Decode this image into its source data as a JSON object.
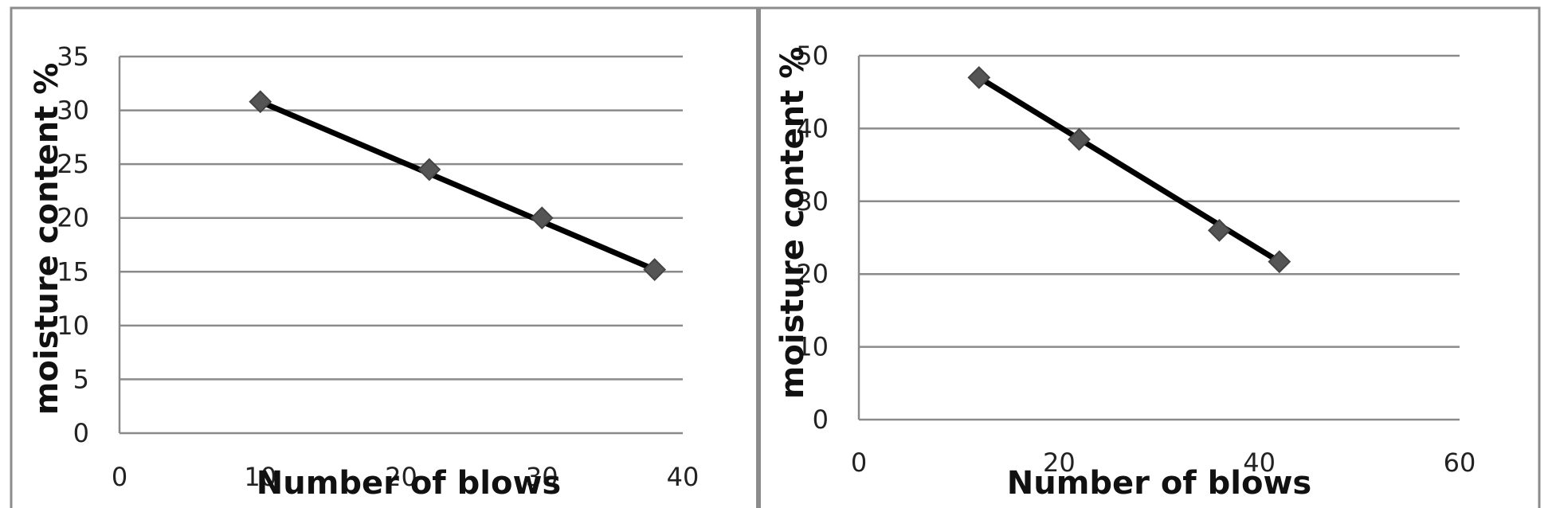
{
  "chart_data": [
    {
      "type": "scatter",
      "xlabel": "Number of blows",
      "ylabel": "moisture content %",
      "xlim": [
        0,
        40
      ],
      "ylim": [
        0,
        35
      ],
      "x_ticks": [
        "0",
        "10",
        "20",
        "30",
        "40"
      ],
      "y_ticks": [
        "0",
        "5",
        "10",
        "15",
        "20",
        "25",
        "30",
        "35"
      ],
      "grid": "horizontal",
      "legend": "none",
      "series": [
        {
          "x": [
            10,
            22,
            30,
            38
          ],
          "y": [
            30.8,
            24.5,
            20,
            15.2
          ],
          "color": "#000000",
          "marker": "diamond",
          "marker_color": "#555555",
          "trendline": {
            "x": [
              10,
              38
            ],
            "y": [
              30.8,
              15.2
            ]
          }
        }
      ]
    },
    {
      "type": "scatter",
      "xlabel": "Number of blows",
      "ylabel": "moisture content %",
      "xlim": [
        0,
        60
      ],
      "ylim": [
        0,
        50
      ],
      "x_ticks": [
        "0",
        "20",
        "40",
        "60"
      ],
      "y_ticks": [
        "0",
        "10",
        "20",
        "30",
        "40",
        "50"
      ],
      "grid": "horizontal",
      "legend": "none",
      "series": [
        {
          "x": [
            12,
            22,
            36,
            42
          ],
          "y": [
            47,
            38.5,
            26,
            21.7
          ],
          "color": "#000000",
          "marker": "diamond",
          "marker_color": "#555555",
          "trendline": {
            "x": [
              12,
              42
            ],
            "y": [
              47,
              21.7
            ]
          }
        }
      ]
    }
  ]
}
